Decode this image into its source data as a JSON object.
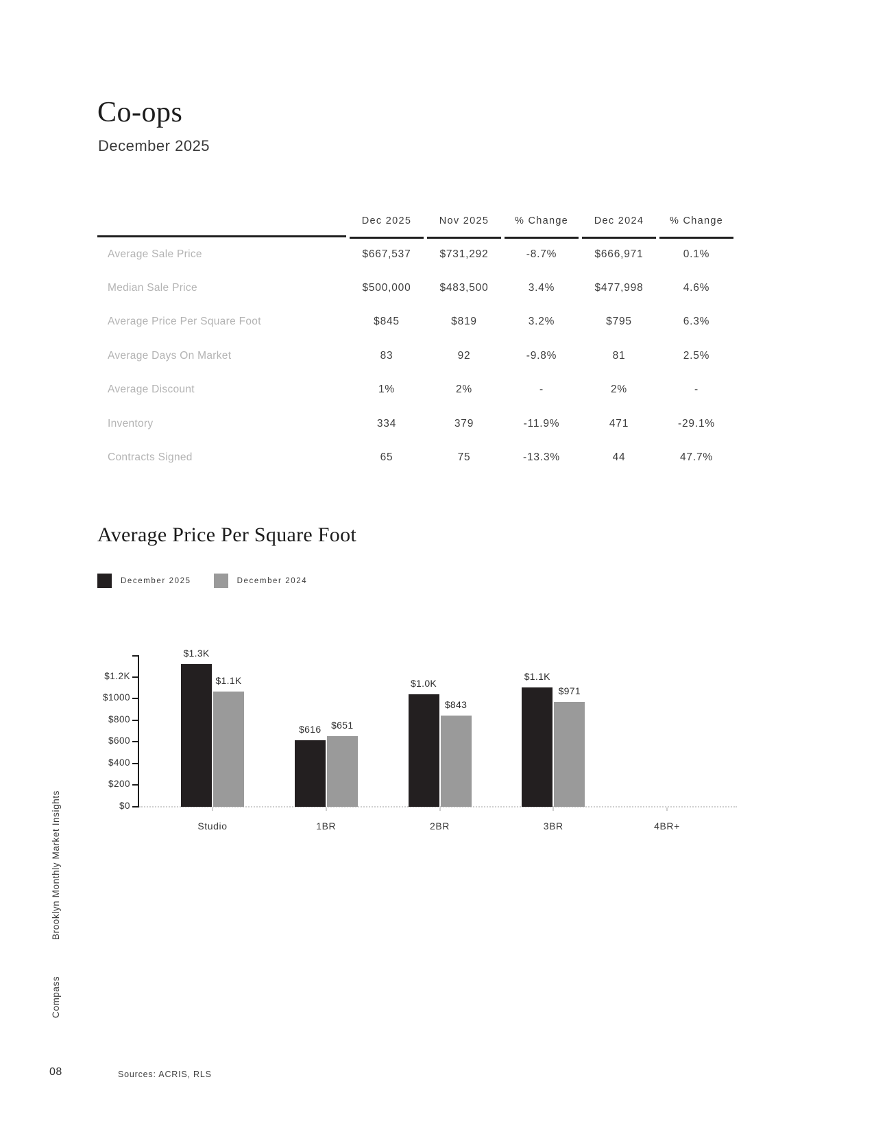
{
  "page": {
    "title": "Co-ops",
    "subtitle": "December 2025",
    "page_number": "08",
    "sources": "Sources: ACRIS, RLS",
    "sidebar_title": "Brooklyn Monthly Market Insights",
    "sidebar_brand": "Compass"
  },
  "colors": {
    "dark": "#231F20",
    "gray": "#9A9A9A",
    "row_label_gray": "#B3B3B3",
    "value_text": "#3D3D3D",
    "baseline_dotted": "#CFCFCF"
  },
  "table": {
    "columns": [
      "Dec 2025",
      "Nov 2025",
      "% Change",
      "Dec 2024",
      "% Change"
    ],
    "rows": [
      {
        "label": "Average Sale Price",
        "values": [
          "$667,537",
          "$731,292",
          "-8.7%",
          "$666,971",
          "0.1%"
        ]
      },
      {
        "label": "Median Sale Price",
        "values": [
          "$500,000",
          "$483,500",
          "3.4%",
          "$477,998",
          "4.6%"
        ]
      },
      {
        "label": "Average Price Per Square Foot",
        "values": [
          "$845",
          "$819",
          "3.2%",
          "$795",
          "6.3%"
        ]
      },
      {
        "label": "Average Days On Market",
        "values": [
          "83",
          "92",
          "-9.8%",
          "81",
          "2.5%"
        ]
      },
      {
        "label": "Average Discount",
        "values": [
          "1%",
          "2%",
          "-",
          "2%",
          "-"
        ]
      },
      {
        "label": "Inventory",
        "values": [
          "334",
          "379",
          "-11.9%",
          "471",
          "-29.1%"
        ]
      },
      {
        "label": "Contracts Signed",
        "values": [
          "65",
          "75",
          "-13.3%",
          "44",
          "47.7%"
        ]
      }
    ]
  },
  "chart_data": {
    "type": "bar",
    "title": "Average Price Per Square Foot",
    "categories": [
      "Studio",
      "1BR",
      "2BR",
      "3BR",
      "4BR+"
    ],
    "series": [
      {
        "name": "December 2025",
        "color": "#231F20",
        "values": [
          1320,
          616,
          1040,
          1105,
          null
        ],
        "labels": [
          "$1.3K",
          "$616",
          "$1.0K",
          "$1.1K",
          ""
        ]
      },
      {
        "name": "December 2024",
        "color": "#9A9A9A",
        "values": [
          1065,
          651,
          843,
          971,
          null
        ],
        "labels": [
          "$1.1K",
          "$651",
          "$843",
          "$971",
          ""
        ]
      }
    ],
    "xlabel": "",
    "ylabel": "",
    "ylim": [
      0,
      1400
    ],
    "yticks": [
      {
        "v": 1200,
        "label": "$1.2K"
      },
      {
        "v": 1000,
        "label": "$1000"
      },
      {
        "v": 800,
        "label": "$800"
      },
      {
        "v": 600,
        "label": "$600"
      },
      {
        "v": 400,
        "label": "$400"
      },
      {
        "v": 200,
        "label": "$200"
      },
      {
        "v": 0,
        "label": "$0"
      }
    ],
    "grid": false,
    "legend_position": "top-left"
  }
}
